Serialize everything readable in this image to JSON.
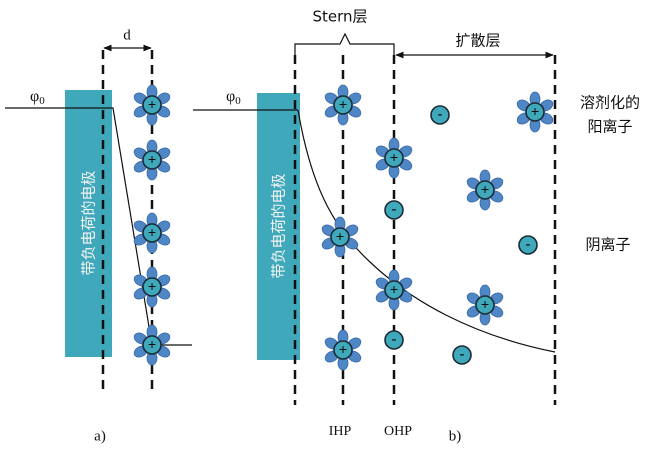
{
  "panel_a": {
    "distance_label": "d",
    "potential_symbol": "φ",
    "potential_subscript": "0",
    "electrode_label": "带负电荷的电极",
    "caption": "a)"
  },
  "panel_b": {
    "stern_label": "Stern层",
    "diffuse_label": "扩散层",
    "potential_symbol": "φ",
    "potential_subscript": "0",
    "electrode_label": "带负电荷的电极",
    "cation_label_line1": "溶剂化的",
    "cation_label_line2": "阳离子",
    "anion_label": "阴离子",
    "ihp_label": "IHP",
    "ohp_label": "OHP",
    "caption": "b)"
  },
  "ion_symbols": {
    "plus": "+",
    "minus": "-"
  }
}
